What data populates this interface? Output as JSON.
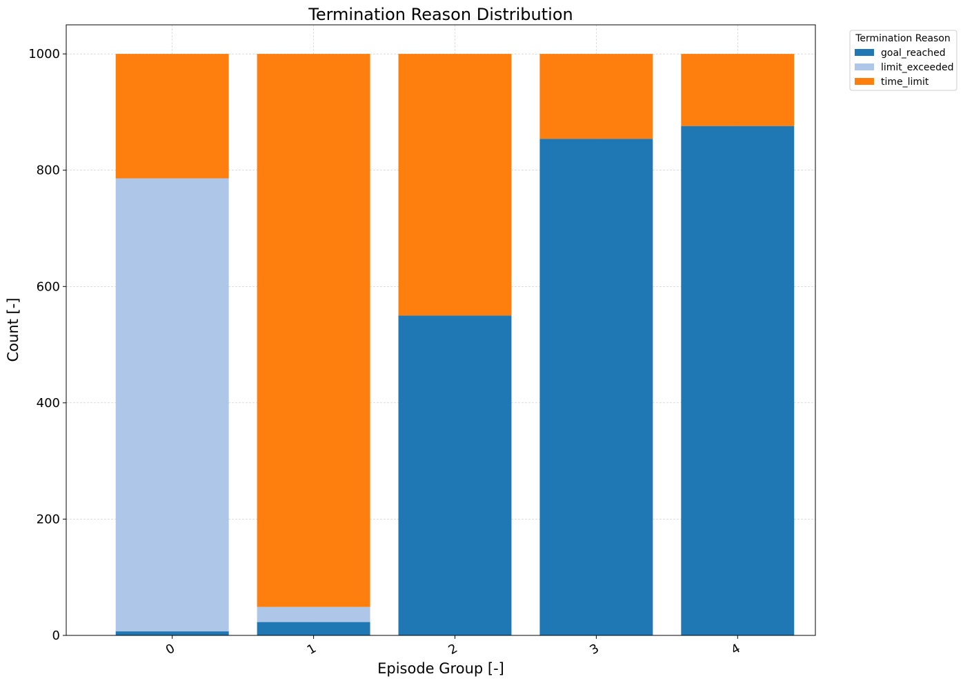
{
  "chart_data": {
    "type": "bar",
    "stacked": true,
    "title": "Termination Reason Distribution",
    "xlabel": "Episode Group [-]",
    "ylabel": "Count [-]",
    "categories": [
      "0",
      "1",
      "2",
      "3",
      "4"
    ],
    "ylim": [
      0,
      1050
    ],
    "yticks": [
      0,
      200,
      400,
      600,
      800,
      1000
    ],
    "grid": true,
    "legend_title": "Termination Reason",
    "legend_placement": "outside-top-right",
    "series": [
      {
        "name": "goal_reached",
        "color": "#1f77b4",
        "values": [
          7,
          23,
          550,
          854,
          876
        ]
      },
      {
        "name": "limit_exceeded",
        "color": "#aec7e8",
        "values": [
          779,
          26,
          0,
          0,
          0
        ]
      },
      {
        "name": "time_limit",
        "color": "#ff7f0e",
        "values": [
          214,
          951,
          450,
          146,
          124
        ]
      }
    ]
  }
}
